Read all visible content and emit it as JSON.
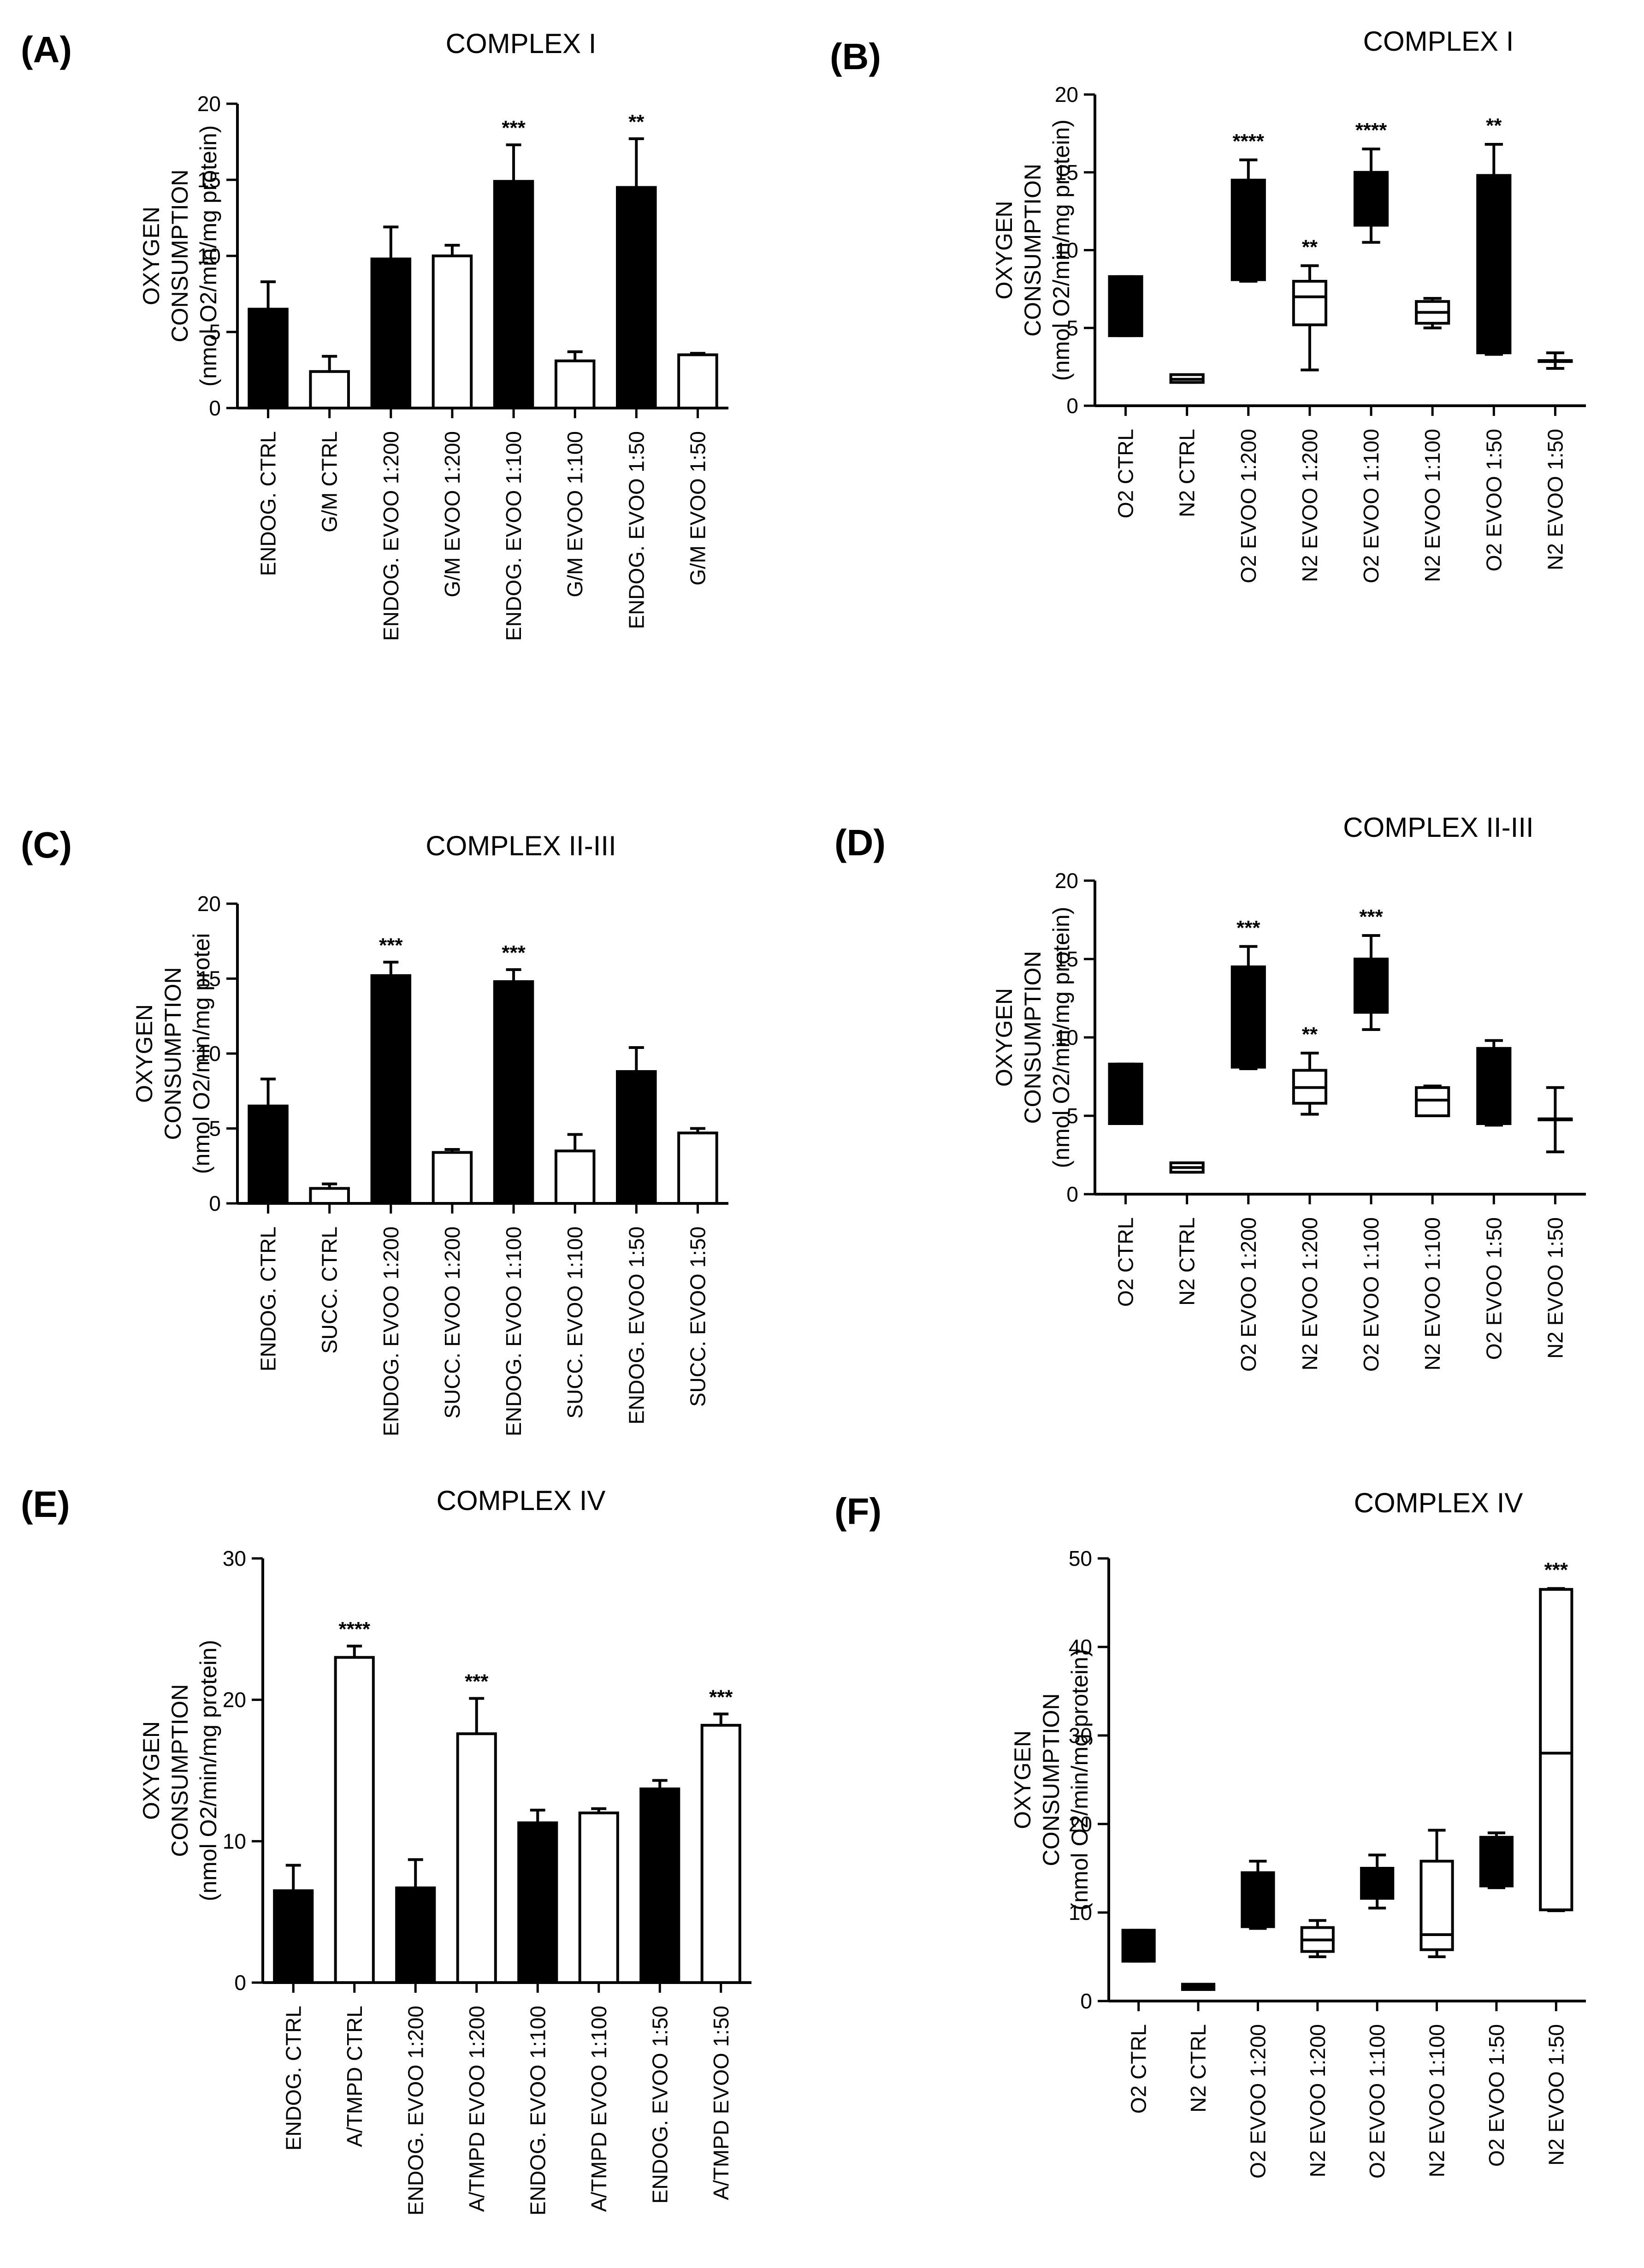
{
  "figure": {
    "colors": {
      "filled": "#000000",
      "open": "#ffffff",
      "stroke": "#000000"
    }
  },
  "chart_data": [
    {
      "id": "A",
      "label": "(A)",
      "type": "bar",
      "title": "COMPLEX I",
      "ylabel": [
        "OXYGEN",
        "CONSUMPTION",
        "(nmol O2/min/mg protein)"
      ],
      "ylim": [
        0,
        20
      ],
      "yticks": [
        0,
        5,
        10,
        15,
        20
      ],
      "categories": [
        "ENDOG. CTRL",
        "G/M CTRL",
        "ENDOG. EVOO 1:200",
        "G/M  EVOO 1:200",
        "ENDOG. EVOO 1:100",
        "G/M  EVOO 1:100",
        "ENDOG. EVOO 1:50",
        "G/M  EVOO 1:50"
      ],
      "fills": [
        "filled",
        "open",
        "filled",
        "open",
        "filled",
        "open",
        "filled",
        "open"
      ],
      "values": [
        6.5,
        2.4,
        9.8,
        10.0,
        14.9,
        3.1,
        14.5,
        3.5
      ],
      "errors": [
        1.8,
        1.0,
        2.1,
        0.7,
        2.4,
        0.6,
        3.2,
        0.1
      ],
      "significance": [
        "",
        "",
        "",
        "",
        "***",
        "",
        "**",
        ""
      ]
    },
    {
      "id": "B",
      "label": "(B)",
      "type": "box",
      "title": "COMPLEX I",
      "ylabel": [
        "OXYGEN",
        "CONSUMPTION",
        "(nmol O2/min/mg protein)"
      ],
      "ylim": [
        0,
        20
      ],
      "yticks": [
        0,
        5,
        10,
        15,
        20
      ],
      "categories": [
        "O2 CTRL",
        "N2 CTRL",
        "O2  EVOO 1:200",
        "N2  EVOO 1:200",
        "O2  EVOO 1:100",
        "N2  EVOO 1:100",
        "O2  EVOO 1:50",
        "N2  EVOO 1:50"
      ],
      "fills": [
        "filled",
        "open",
        "filled",
        "open",
        "filled",
        "open",
        "filled",
        "open"
      ],
      "boxes": [
        {
          "min": 4.5,
          "q1": 4.5,
          "median": 6.5,
          "q3": 8.3,
          "max": 8.3
        },
        {
          "min": 1.5,
          "q1": 1.5,
          "median": 1.7,
          "q3": 2.0,
          "max": 2.0
        },
        {
          "min": 8.0,
          "q1": 8.1,
          "median": 9.0,
          "q3": 14.5,
          "max": 15.8
        },
        {
          "min": 2.3,
          "q1": 5.2,
          "median": 7.0,
          "q3": 8.0,
          "max": 9.0
        },
        {
          "min": 10.5,
          "q1": 11.6,
          "median": 13.5,
          "q3": 15.0,
          "max": 16.5
        },
        {
          "min": 5.0,
          "q1": 5.3,
          "median": 6.0,
          "q3": 6.7,
          "max": 6.9
        },
        {
          "min": 3.3,
          "q1": 3.4,
          "median": 5.0,
          "q3": 14.8,
          "max": 16.8
        },
        {
          "min": 2.4,
          "q1": 2.9,
          "median": 2.9,
          "q3": 2.9,
          "max": 3.4
        }
      ],
      "significance": [
        "",
        "",
        "****",
        "**",
        "****",
        "",
        "**",
        ""
      ]
    },
    {
      "id": "C",
      "label": "(C)",
      "type": "bar",
      "title": "COMPLEX II-III",
      "ylabel": [
        "OXYGEN",
        "CONSUMPTION",
        "(nmol O2/min/mg protei"
      ],
      "ylim": [
        0,
        20
      ],
      "yticks": [
        0,
        5,
        10,
        15,
        20
      ],
      "categories": [
        "ENDOG. CTRL",
        "SUCC. CTRL",
        "ENDOG. EVOO 1:200",
        "SUCC.  EVOO 1:200",
        "ENDOG. EVOO 1:100",
        "SUCC.  EVOO 1:100",
        "ENDOG. EVOO 1:50",
        "SUCC.  EVOO 1:50"
      ],
      "fills": [
        "filled",
        "open",
        "filled",
        "open",
        "filled",
        "open",
        "filled",
        "open"
      ],
      "values": [
        6.5,
        1.0,
        15.2,
        3.4,
        14.8,
        3.5,
        8.8,
        4.7
      ],
      "errors": [
        1.8,
        0.3,
        0.9,
        0.2,
        0.8,
        1.1,
        1.6,
        0.3
      ],
      "significance": [
        "",
        "",
        "***",
        "",
        "***",
        "",
        "",
        ""
      ]
    },
    {
      "id": "D",
      "label": "(D)",
      "type": "box",
      "title": "COMPLEX II-III",
      "ylabel": [
        "OXYGEN",
        "CONSUMPTION",
        "(nmol O2/min/mg protein)"
      ],
      "ylim": [
        0,
        20
      ],
      "yticks": [
        0,
        5,
        10,
        15,
        20
      ],
      "categories": [
        "O2 CTRL",
        "N2 CTRL",
        "O2  EVOO 1:200",
        "N2  EVOO 1:200",
        "O2  EVOO 1:100",
        "N2  EVOO 1:100",
        "O2  EVOO 1:50",
        "N2  EVOO 1:50"
      ],
      "fills": [
        "filled",
        "open",
        "filled",
        "open",
        "filled",
        "open",
        "filled",
        "open"
      ],
      "boxes": [
        {
          "min": 4.5,
          "q1": 4.5,
          "median": 6.5,
          "q3": 8.3,
          "max": 8.3
        },
        {
          "min": 1.4,
          "q1": 1.4,
          "median": 1.7,
          "q3": 2.0,
          "max": 2.0
        },
        {
          "min": 8.0,
          "q1": 8.1,
          "median": 9.0,
          "q3": 14.5,
          "max": 15.8
        },
        {
          "min": 5.1,
          "q1": 5.8,
          "median": 6.8,
          "q3": 7.9,
          "max": 9.0
        },
        {
          "min": 10.5,
          "q1": 11.6,
          "median": 13.5,
          "q3": 15.0,
          "max": 16.5
        },
        {
          "min": 5.0,
          "q1": 5.0,
          "median": 6.0,
          "q3": 6.8,
          "max": 6.9
        },
        {
          "min": 4.4,
          "q1": 4.5,
          "median": 6.0,
          "q3": 9.3,
          "max": 9.8
        },
        {
          "min": 2.7,
          "q1": 4.8,
          "median": 4.8,
          "q3": 4.8,
          "max": 6.8
        }
      ],
      "significance": [
        "",
        "",
        "***",
        "**",
        "***",
        "",
        "",
        ""
      ]
    },
    {
      "id": "E",
      "label": "(E)",
      "type": "bar",
      "title": "COMPLEX IV",
      "ylabel": [
        "OXYGEN",
        "CONSUMPTION",
        "(nmol O2/min/mg protein)"
      ],
      "ylim": [
        0,
        30
      ],
      "yticks": [
        0,
        10,
        20,
        30
      ],
      "categories": [
        "ENDOG. CTRL",
        "A/TMPD CTRL",
        "ENDOG. EVOO 1:200",
        "A/TMPD  EVOO 1:200",
        "ENDOG. EVOO 1:100",
        "A/TMPD  EVOO 1:100",
        "ENDOG. EVOO 1:50",
        "A/TMPD  EVOO 1:50"
      ],
      "fills": [
        "filled",
        "open",
        "filled",
        "open",
        "filled",
        "open",
        "filled",
        "open"
      ],
      "values": [
        6.5,
        23.0,
        6.7,
        17.6,
        11.3,
        12.0,
        13.7,
        18.2
      ],
      "errors": [
        1.8,
        0.8,
        2.0,
        2.5,
        0.9,
        0.3,
        0.6,
        0.8
      ],
      "significance": [
        "",
        "****",
        "",
        "***",
        "",
        "",
        "",
        "***"
      ]
    },
    {
      "id": "F",
      "label": "(F)",
      "type": "box",
      "title": "COMPLEX IV",
      "ylabel": [
        "OXYGEN",
        "CONSUMPTION",
        "(nmol O2/min/mg protein)"
      ],
      "ylim": [
        0,
        50
      ],
      "yticks": [
        0,
        10,
        20,
        30,
        40,
        50
      ],
      "categories": [
        "O2 CTRL",
        "N2 CTRL",
        "O2  EVOO 1:200",
        "N2  EVOO 1:200",
        "O2  EVOO 1:100",
        "N2  EVOO 1:100",
        "O2  EVOO 1:50",
        "N2  EVOO 1:50"
      ],
      "fills": [
        "filled",
        "open",
        "filled",
        "open",
        "filled",
        "open",
        "filled",
        "open"
      ],
      "boxes": [
        {
          "min": 4.5,
          "q1": 4.5,
          "median": 6.3,
          "q3": 8.0,
          "max": 8.0
        },
        {
          "min": 1.3,
          "q1": 1.3,
          "median": 1.6,
          "q3": 1.9,
          "max": 1.9
        },
        {
          "min": 8.2,
          "q1": 8.4,
          "median": 9.5,
          "q3": 14.5,
          "max": 15.8
        },
        {
          "min": 5.0,
          "q1": 5.6,
          "median": 6.9,
          "q3": 8.3,
          "max": 9.1
        },
        {
          "min": 10.5,
          "q1": 11.6,
          "median": 13.5,
          "q3": 15.0,
          "max": 16.5
        },
        {
          "min": 5.0,
          "q1": 5.8,
          "median": 7.5,
          "q3": 15.8,
          "max": 19.3
        },
        {
          "min": 12.8,
          "q1": 13.0,
          "median": 15.5,
          "q3": 18.5,
          "max": 19.0
        },
        {
          "min": 10.2,
          "q1": 10.3,
          "median": 28.0,
          "q3": 46.5,
          "max": 46.6
        }
      ],
      "significance": [
        "",
        "",
        "",
        "",
        "",
        "",
        "",
        "***"
      ]
    }
  ]
}
